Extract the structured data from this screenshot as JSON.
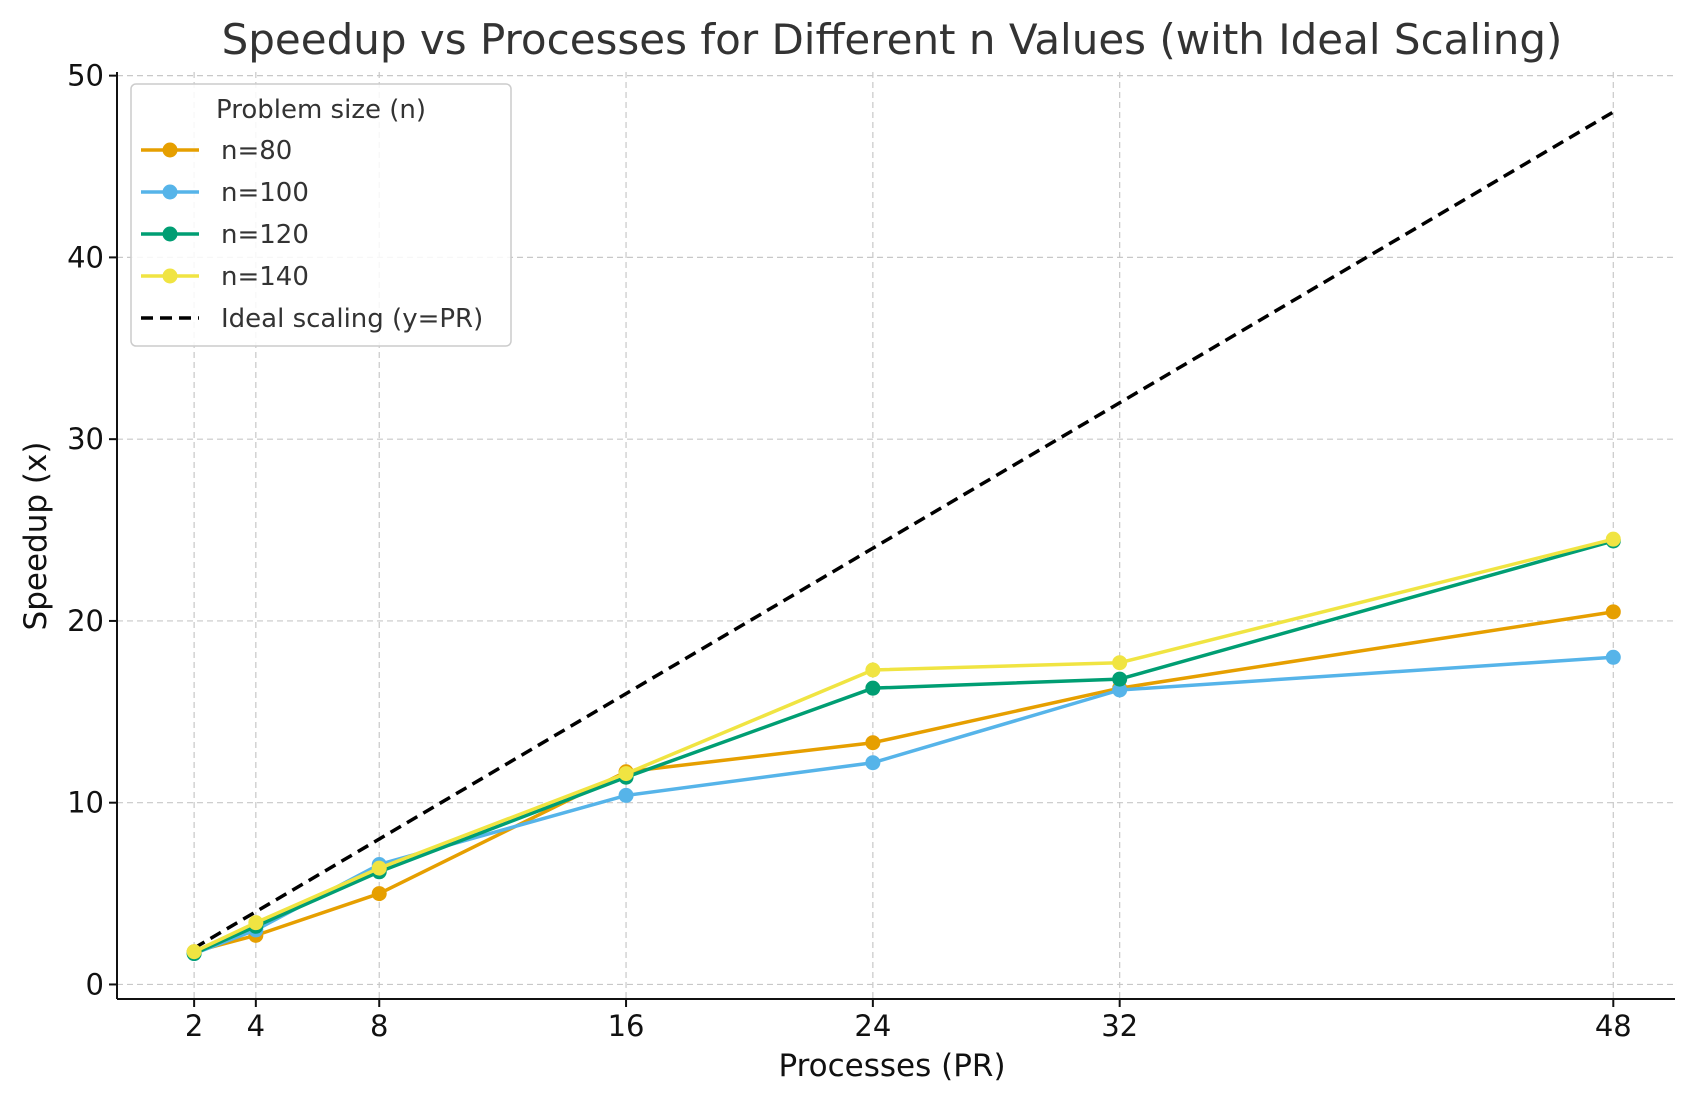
{
  "chart_data": {
    "type": "line",
    "title": "Speedup vs Processes for Different n Values (with Ideal Scaling)",
    "xlabel": "Processes (PR)",
    "ylabel": "Speedup (x)",
    "x": [
      2,
      4,
      8,
      16,
      24,
      32,
      48
    ],
    "x_ticks": [
      2,
      4,
      8,
      16,
      24,
      32,
      48
    ],
    "y_ticks": [
      0,
      10,
      20,
      30,
      40,
      50
    ],
    "xlim": [
      -0.5,
      50
    ],
    "ylim": [
      -0.8,
      50.2
    ],
    "grid": true,
    "legend_title": "Problem size (n)",
    "legend_position": "top-left",
    "series": [
      {
        "name": "n=80",
        "color": "#E69F00",
        "values": [
          1.8,
          2.7,
          5.0,
          11.7,
          13.3,
          16.3,
          20.5
        ]
      },
      {
        "name": "n=100",
        "color": "#56B4E9",
        "values": [
          1.7,
          3.0,
          6.6,
          10.4,
          12.2,
          16.2,
          18.0
        ]
      },
      {
        "name": "n=120",
        "color": "#009E73",
        "values": [
          1.7,
          3.2,
          6.2,
          11.4,
          16.3,
          16.8,
          24.4
        ]
      },
      {
        "name": "n=140",
        "color": "#F0E442",
        "values": [
          1.8,
          3.4,
          6.4,
          11.6,
          17.3,
          17.7,
          24.5
        ]
      }
    ],
    "ideal": {
      "name": "Ideal scaling (y=PR)",
      "color": "#000000",
      "x": [
        2,
        48
      ],
      "values": [
        2,
        48
      ]
    }
  }
}
